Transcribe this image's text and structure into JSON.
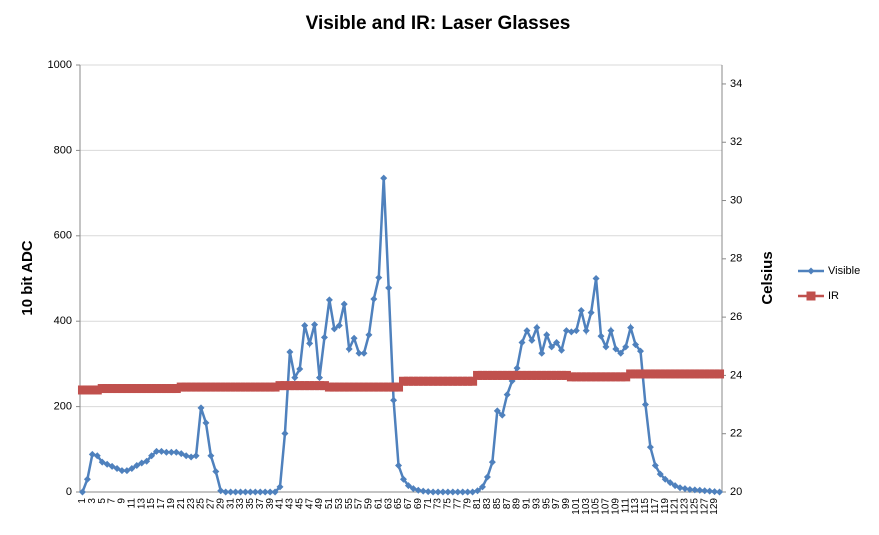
{
  "chart_data": {
    "type": "line",
    "title": "Visible and IR: Laser Glasses",
    "y_label": "10 bit ADC",
    "y2_label": "Celsius",
    "categories": [
      1,
      null,
      3,
      null,
      5,
      null,
      7,
      null,
      9,
      null,
      11,
      null,
      13,
      null,
      15,
      null,
      17,
      null,
      19,
      null,
      21,
      null,
      23,
      null,
      25,
      null,
      27,
      null,
      29,
      null,
      31,
      null,
      33,
      null,
      35,
      null,
      37,
      null,
      39,
      null,
      41,
      null,
      43,
      null,
      45,
      null,
      47,
      null,
      49,
      null,
      51,
      null,
      53,
      null,
      55,
      null,
      57,
      null,
      59,
      null,
      61,
      null,
      63,
      null,
      65,
      null,
      67,
      null,
      69,
      null,
      71,
      null,
      73,
      null,
      75,
      null,
      77,
      null,
      79,
      null,
      81,
      null,
      83,
      null,
      85,
      null,
      87,
      null,
      89,
      null,
      91,
      null,
      93,
      null,
      95,
      null,
      97,
      null,
      99,
      null,
      101,
      null,
      103,
      null,
      105,
      null,
      107,
      null,
      109,
      null,
      111,
      null,
      113,
      null,
      115,
      null,
      117,
      null,
      119,
      null,
      121,
      null,
      123,
      null,
      125,
      null,
      127,
      null,
      129,
      null
    ],
    "series": [
      {
        "name": "Visible",
        "color": "#4f81bd",
        "marker": "diamond",
        "values": [
          0,
          30,
          88,
          85,
          70,
          65,
          60,
          55,
          50,
          50,
          55,
          62,
          68,
          72,
          85,
          95,
          95,
          93,
          93,
          93,
          90,
          85,
          82,
          85,
          197,
          162,
          85,
          48,
          3,
          0,
          0,
          0,
          0,
          0,
          0,
          0,
          0,
          0,
          0,
          0,
          12,
          137,
          328,
          268,
          288,
          390,
          348,
          392,
          268,
          362,
          450,
          382,
          390,
          440,
          335,
          360,
          325,
          325,
          368,
          452,
          502,
          735,
          478,
          215,
          62,
          30,
          15,
          8,
          4,
          2,
          1,
          0,
          0,
          0,
          0,
          0,
          0,
          0,
          0,
          0,
          3,
          12,
          35,
          70,
          190,
          180,
          228,
          260,
          290,
          350,
          378,
          355,
          385,
          325,
          368,
          340,
          350,
          332,
          378,
          375,
          378,
          425,
          378,
          420,
          500,
          365,
          340,
          378,
          335,
          325,
          340,
          385,
          345,
          330,
          205,
          105,
          62,
          42,
          30,
          22,
          15,
          10,
          8,
          6,
          5,
          4,
          3,
          2,
          1,
          0
        ]
      },
      {
        "name": "IR",
        "color": "#c0504d",
        "marker": "square",
        "axis": "y2",
        "values": [
          23.5,
          23.5,
          23.5,
          23.5,
          23.55,
          23.55,
          23.55,
          23.55,
          23.55,
          23.55,
          23.55,
          23.55,
          23.55,
          23.55,
          23.55,
          23.55,
          23.55,
          23.55,
          23.55,
          23.55,
          23.6,
          23.6,
          23.6,
          23.6,
          23.6,
          23.6,
          23.6,
          23.6,
          23.6,
          23.6,
          23.6,
          23.6,
          23.6,
          23.6,
          23.6,
          23.6,
          23.6,
          23.6,
          23.6,
          23.6,
          23.65,
          23.65,
          23.65,
          23.65,
          23.65,
          23.65,
          23.65,
          23.65,
          23.65,
          23.65,
          23.6,
          23.6,
          23.6,
          23.6,
          23.6,
          23.6,
          23.6,
          23.6,
          23.6,
          23.6,
          23.6,
          23.6,
          23.6,
          23.6,
          23.6,
          23.8,
          23.8,
          23.8,
          23.8,
          23.8,
          23.8,
          23.8,
          23.8,
          23.8,
          23.8,
          23.8,
          23.8,
          23.8,
          23.8,
          23.8,
          24.0,
          24.0,
          24.0,
          24.0,
          24.0,
          24.0,
          24.0,
          24.0,
          24.0,
          24.0,
          24.0,
          24.0,
          24.0,
          24.0,
          24.0,
          24.0,
          24.0,
          24.0,
          24.0,
          23.95,
          23.95,
          23.95,
          23.95,
          23.95,
          23.95,
          23.95,
          23.95,
          23.95,
          23.95,
          23.95,
          23.95,
          24.05,
          24.05,
          24.05,
          24.05,
          24.05,
          24.05,
          24.05,
          24.05,
          24.05,
          24.05,
          24.05,
          24.05,
          24.05,
          24.05,
          24.05,
          24.05,
          24.05,
          24.05,
          24.05
        ]
      }
    ],
    "ylim": [
      0,
      1000
    ],
    "yticks": [
      0,
      200,
      400,
      600,
      800,
      1000
    ],
    "y2lim": [
      20,
      34.65
    ],
    "y2ticks": [
      20,
      22,
      24,
      26,
      28,
      30,
      32,
      34
    ],
    "grid": true,
    "legend": "right"
  }
}
